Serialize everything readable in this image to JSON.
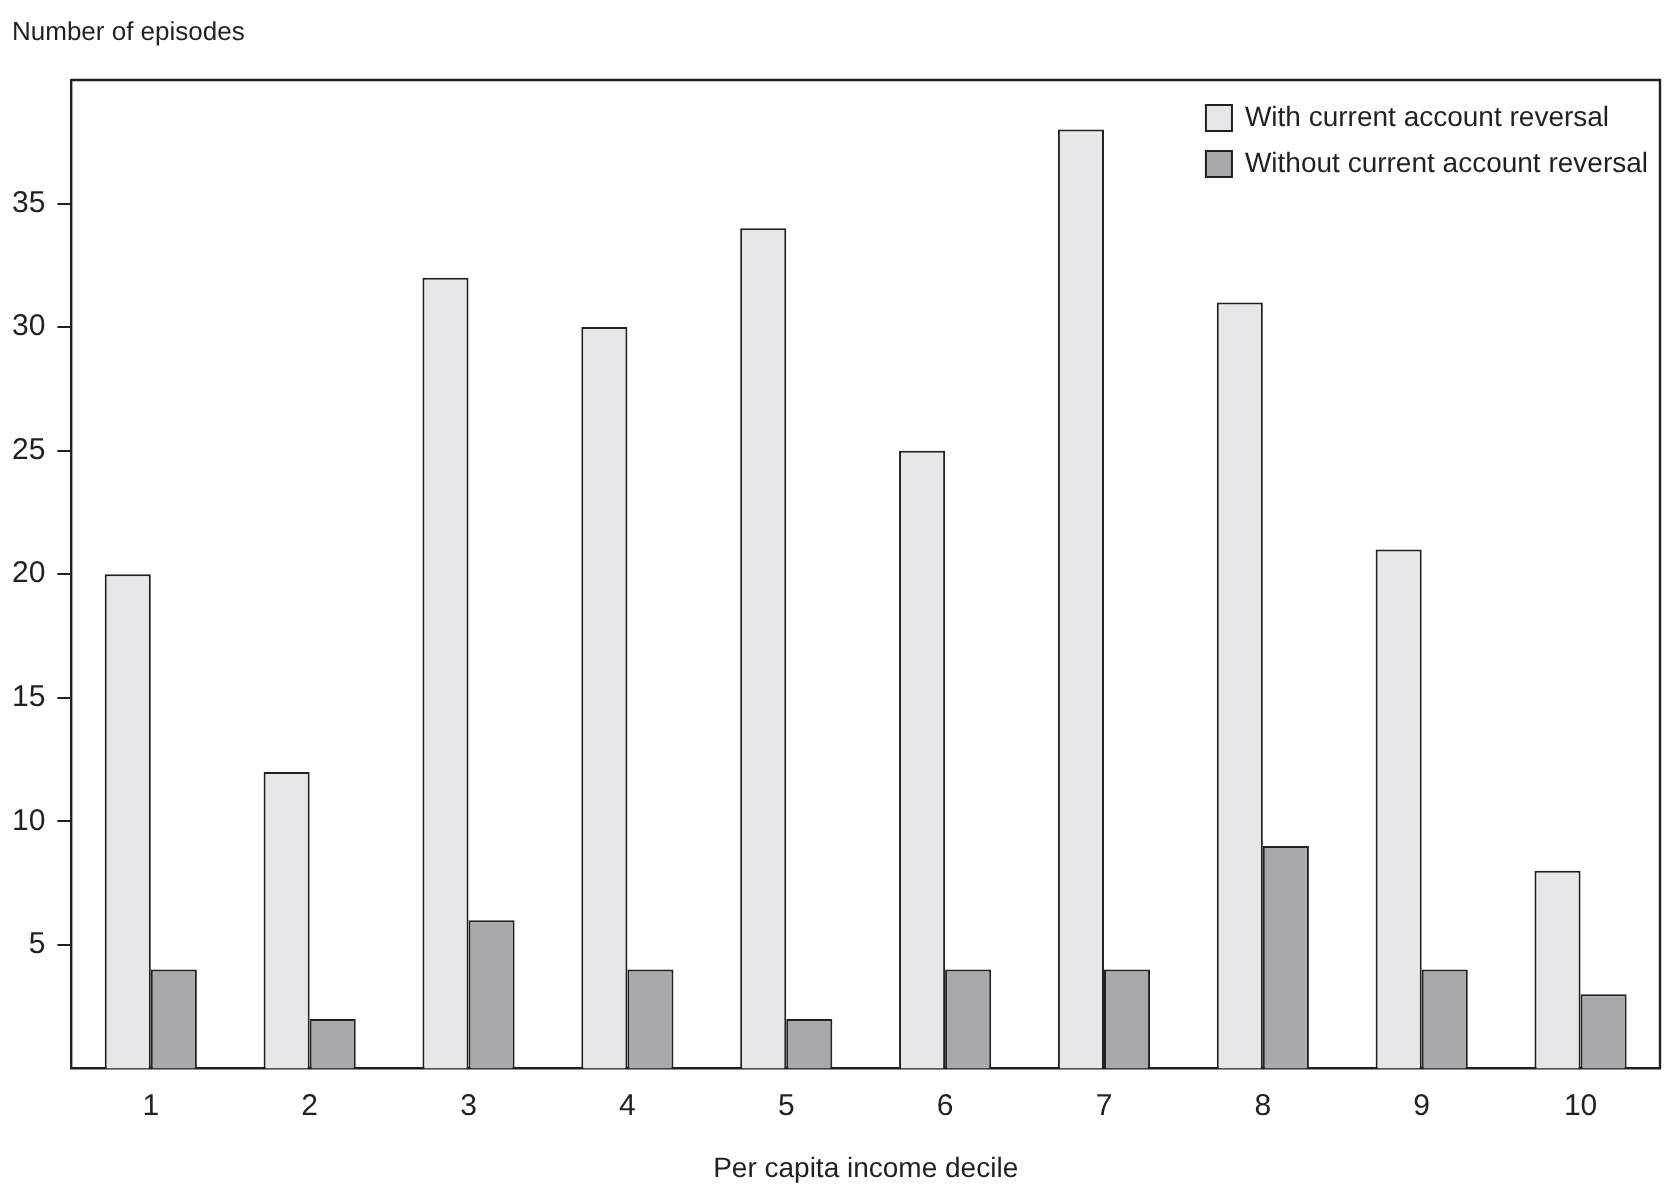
{
  "chart_data": {
    "type": "bar",
    "ylabel": "Number of episodes",
    "xlabel": "Per capita income decile",
    "categories": [
      "1",
      "2",
      "3",
      "4",
      "5",
      "6",
      "7",
      "8",
      "9",
      "10"
    ],
    "series": [
      {
        "name": "With current account reversal",
        "color": "#e6e7e8",
        "values": [
          20,
          12,
          32,
          30,
          34,
          25,
          38,
          31,
          21,
          8
        ]
      },
      {
        "name": "Without current account reversal",
        "color": "#a7a9ac",
        "values": [
          4,
          2,
          6,
          4,
          2,
          4,
          4,
          9,
          4,
          3
        ]
      }
    ],
    "ylim": [
      0,
      40
    ],
    "yticks": [
      5,
      10,
      15,
      20,
      25,
      30,
      35
    ],
    "grid": false,
    "legend": "top right"
  }
}
